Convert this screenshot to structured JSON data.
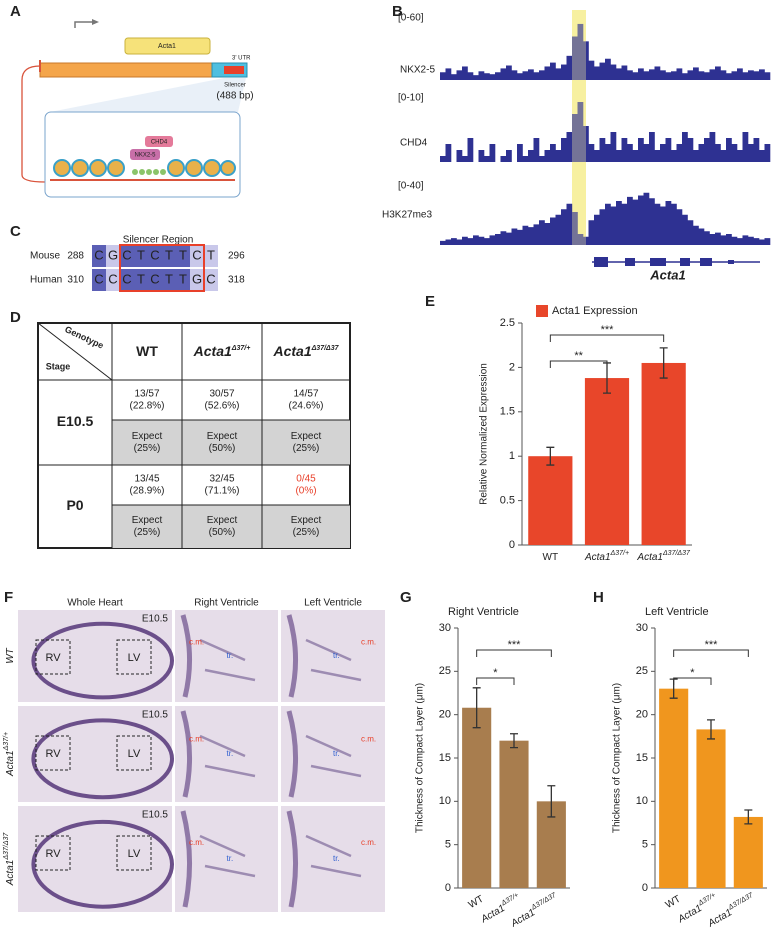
{
  "panel_labels": [
    "A",
    "B",
    "C",
    "D",
    "E",
    "F",
    "G",
    "H"
  ],
  "panel_a": {
    "gene": "Acta1",
    "utr": "3' UTR",
    "silencer": "Silencer",
    "silencer_size": "(488 bp)",
    "proteins": [
      "CHD4",
      "NKX2-5"
    ]
  },
  "panel_b": {
    "gene": "Acta1",
    "tracks": [
      {
        "name": "NKX2-5",
        "range": "[0-60]",
        "ylim": [
          0,
          60
        ],
        "color": "#2e3192",
        "signal": [
          8,
          12,
          6,
          10,
          14,
          8,
          5,
          9,
          7,
          6,
          8,
          12,
          15,
          10,
          7,
          9,
          11,
          8,
          10,
          14,
          18,
          12,
          16,
          25,
          45,
          58,
          40,
          20,
          14,
          18,
          22,
          16,
          12,
          15,
          10,
          8,
          12,
          9,
          11,
          14,
          10,
          8,
          9,
          12,
          7,
          10,
          13,
          9,
          8,
          11,
          14,
          10,
          7,
          9,
          12,
          8,
          10,
          9,
          11,
          8
        ]
      },
      {
        "name": "CHD4",
        "range": "[0-10]",
        "ylim": [
          0,
          10
        ],
        "color": "#2e3192",
        "signal": [
          1,
          3,
          0,
          2,
          1,
          4,
          0,
          2,
          1,
          3,
          0,
          1,
          2,
          0,
          3,
          1,
          2,
          4,
          1,
          2,
          3,
          2,
          4,
          5,
          8,
          10,
          6,
          3,
          2,
          4,
          3,
          5,
          2,
          4,
          3,
          2,
          4,
          3,
          5,
          2,
          3,
          4,
          2,
          3,
          5,
          4,
          2,
          3,
          4,
          5,
          3,
          2,
          4,
          3,
          2,
          5,
          3,
          4,
          2,
          3
        ]
      },
      {
        "name": "H3K27me3",
        "range": "[0-40]",
        "ylim": [
          0,
          40
        ],
        "color": "#2e3192",
        "signal": [
          3,
          4,
          5,
          4,
          6,
          5,
          7,
          6,
          5,
          7,
          8,
          10,
          9,
          12,
          11,
          14,
          13,
          15,
          18,
          16,
          20,
          22,
          26,
          30,
          24,
          8,
          6,
          18,
          22,
          26,
          30,
          28,
          32,
          30,
          35,
          33,
          36,
          38,
          34,
          30,
          28,
          32,
          30,
          26,
          22,
          18,
          14,
          12,
          10,
          8,
          9,
          7,
          8,
          6,
          5,
          7,
          6,
          5,
          4,
          5
        ]
      }
    ]
  },
  "panel_c": {
    "title": "Silencer Region",
    "rows": [
      {
        "species": "Mouse",
        "start": "288",
        "seq": [
          "C",
          "G",
          "C",
          "T",
          "C",
          "T",
          "T",
          "C",
          "T"
        ],
        "end": "296"
      },
      {
        "species": "Human",
        "start": "310",
        "seq": [
          "C",
          "C",
          "C",
          "T",
          "C",
          "T",
          "T",
          "G",
          "C"
        ],
        "end": "318"
      }
    ]
  },
  "panel_d": {
    "corner": [
      "Genotype",
      "Stage"
    ],
    "columns": [
      {
        "text": "WT"
      },
      {
        "text": "Acta1",
        "sup": "Δ37/+",
        "italic": true
      },
      {
        "text": "Acta1",
        "sup": "Δ37/Δ37",
        "italic": true
      }
    ],
    "rows": [
      {
        "stage": "E10.5",
        "observed": [
          [
            "13/57",
            "(22.8%)"
          ],
          [
            "30/57",
            "(52.6%)"
          ],
          [
            "14/57",
            "(24.6%)"
          ]
        ],
        "expected": [
          [
            "Expect",
            "(25%)"
          ],
          [
            "Expect",
            "(50%)"
          ],
          [
            "Expect",
            "(25%)"
          ]
        ]
      },
      {
        "stage": "P0",
        "observed": [
          [
            "13/45",
            "(28.9%)"
          ],
          [
            "32/45",
            "(71.1%)"
          ],
          [
            "0/45",
            "(0%)"
          ]
        ],
        "expected": [
          [
            "Expect",
            "(25%)"
          ],
          [
            "Expect",
            "(50%)"
          ],
          [
            "Expect",
            "(25%)"
          ]
        ]
      }
    ],
    "highlight_color": "#e8402a"
  },
  "panel_f": {
    "columns": [
      "Whole Heart",
      "Right Ventricle",
      "Left Ventricle"
    ],
    "stage": "E10.5",
    "rows": [
      {
        "text": "WT",
        "italic": true
      },
      {
        "text": "Acta1",
        "sup": "Δ37/+",
        "italic": true
      },
      {
        "text": "Acta1",
        "sup": "Δ37/Δ37",
        "italic": true
      }
    ],
    "regions": [
      "RV",
      "LV"
    ],
    "compact": "c.m.",
    "trabecular": "tr."
  },
  "chart_data": [
    {
      "type": "bar",
      "ylabel": "Relative Normalized Expression",
      "ylim": [
        0,
        2.5
      ],
      "yticks": [
        0,
        0.5,
        1,
        1.5,
        2,
        2.5
      ],
      "legend": true,
      "categories": [
        {
          "text": "WT"
        },
        {
          "text": "Acta1",
          "sup": "Δ37/+",
          "italic": true
        },
        {
          "text": "Acta1",
          "sup": "Δ37/Δ37",
          "italic": true
        }
      ],
      "series": [
        {
          "name": "Acta1 Expression",
          "color": "#e8462a",
          "values": [
            1.0,
            1.88,
            2.05
          ],
          "errors": [
            0.1,
            0.17,
            0.17
          ]
        }
      ],
      "significance": [
        "**",
        "***"
      ]
    },
    {
      "type": "bar",
      "title": "Right Ventricle",
      "ylabel": "Thickness of Compact Layer (μm)",
      "ylim": [
        0,
        30
      ],
      "yticks": [
        0,
        5,
        10,
        15,
        20,
        25,
        30
      ],
      "legend": false,
      "categories": [
        {
          "text": "WT"
        },
        {
          "text": "Acta1",
          "sup": "Δ37/+",
          "italic": true
        },
        {
          "text": "Acta1",
          "sup": "Δ37/Δ37",
          "italic": true
        }
      ],
      "series": [
        {
          "color": "#a87d4e",
          "values": [
            20.8,
            17.0,
            10.0
          ],
          "errors": [
            2.3,
            0.8,
            1.8
          ]
        }
      ],
      "significance": [
        "*",
        "***"
      ]
    },
    {
      "type": "bar",
      "title": "Left Ventricle",
      "ylabel": "Thickness of Compact Layer (μm)",
      "ylim": [
        0,
        30
      ],
      "yticks": [
        0,
        5,
        10,
        15,
        20,
        25,
        30
      ],
      "legend": false,
      "categories": [
        {
          "text": "WT"
        },
        {
          "text": "Acta1",
          "sup": "Δ37/+",
          "italic": true
        },
        {
          "text": "Acta1",
          "sup": "Δ37/Δ37",
          "italic": true
        }
      ],
      "series": [
        {
          "color": "#f0961e",
          "values": [
            23.0,
            18.3,
            8.2
          ],
          "errors": [
            1.1,
            1.1,
            0.8
          ]
        }
      ],
      "significance": [
        "*",
        "***"
      ]
    }
  ]
}
